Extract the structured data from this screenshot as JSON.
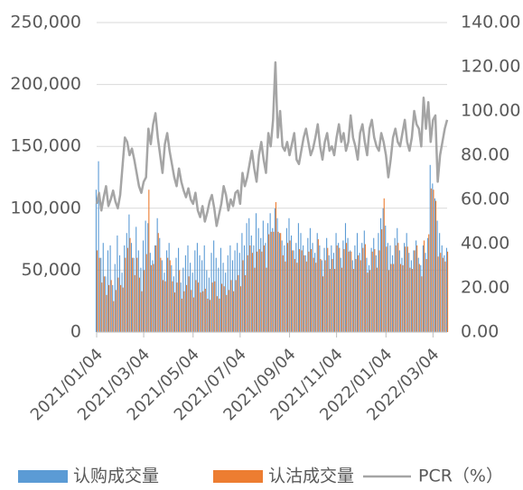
{
  "chart_data": {
    "type": "bar",
    "categories": [
      "2021/01/04",
      null,
      null,
      null,
      null,
      null,
      null,
      null,
      null,
      null,
      null,
      null,
      null,
      null,
      null,
      null,
      null,
      null,
      null,
      null,
      "2021/03/04",
      null,
      null,
      null,
      null,
      null,
      null,
      null,
      null,
      null,
      null,
      null,
      null,
      null,
      null,
      null,
      null,
      null,
      null,
      null,
      null,
      "2021/05/04",
      null,
      null,
      null,
      null,
      null,
      null,
      null,
      null,
      null,
      null,
      null,
      null,
      null,
      null,
      null,
      null,
      null,
      null,
      null,
      "2021/07/04",
      null,
      null,
      null,
      null,
      null,
      null,
      null,
      null,
      null,
      null,
      null,
      null,
      null,
      null,
      null,
      null,
      null,
      null,
      null,
      null,
      "2021/09/04",
      null,
      null,
      null,
      null,
      null,
      null,
      null,
      null,
      null,
      null,
      null,
      null,
      null,
      null,
      null,
      null,
      null,
      null,
      null,
      "2021/11/04",
      null,
      null,
      null,
      null,
      null,
      null,
      null,
      null,
      null,
      null,
      null,
      null,
      null,
      null,
      null,
      null,
      null,
      null,
      null,
      null,
      "2022/01/04",
      null,
      null,
      null,
      null,
      null,
      null,
      null,
      null,
      null,
      null,
      null,
      null,
      null,
      null,
      null,
      null,
      null,
      null,
      null,
      "2022/03/04",
      null,
      null,
      null,
      null,
      null,
      null
    ],
    "series": [
      {
        "name": "认购成交量",
        "color": "#5b9bd5",
        "values": [
          115000,
          138000,
          60000,
          72000,
          45000,
          66000,
          70000,
          38000,
          55000,
          78000,
          62000,
          48000,
          70000,
          80000,
          95000,
          72000,
          60000,
          85000,
          66000,
          52000,
          74000,
          90000,
          88000,
          64000,
          58000,
          70000,
          92000,
          76000,
          58000,
          48000,
          66000,
          72000,
          54000,
          45000,
          60000,
          68000,
          40000,
          52000,
          62000,
          70000,
          56000,
          48000,
          66000,
          72000,
          62000,
          58000,
          70000,
          50000,
          44000,
          64000,
          74000,
          60000,
          52000,
          68000,
          56000,
          48000,
          62000,
          70000,
          58000,
          66000,
          72000,
          64000,
          80000,
          70000,
          88000,
          92000,
          78000,
          70000,
          96000,
          84000,
          76000,
          90000,
          72000,
          88000,
          96000,
          84000,
          100000,
          92000,
          80000,
          74000,
          70000,
          84000,
          92000,
          78000,
          66000,
          72000,
          88000,
          80000,
          70000,
          62000,
          76000,
          84000,
          72000,
          64000,
          80000,
          70000,
          58000,
          68000,
          76000,
          62000,
          70000,
          64000,
          80000,
          72000,
          60000,
          74000,
          88000,
          76000,
          66000,
          58000,
          70000,
          80000,
          64000,
          72000,
          82000,
          60000,
          54000,
          68000,
          76000,
          62000,
          80000,
          92000,
          100000,
          86000,
          72000,
          70000,
          62000,
          76000,
          84000,
          66000,
          60000,
          72000,
          80000,
          64000,
          58000,
          66000,
          74000,
          60000,
          54000,
          70000,
          64000,
          76000,
          135000,
          120000,
          108000,
          90000,
          80000,
          70000,
          62000,
          68000
        ]
      },
      {
        "name": "认沽成交量",
        "color": "#ed7d31",
        "values": [
          66000,
          60000,
          40000,
          45000,
          30000,
          38000,
          42000,
          25000,
          34000,
          44000,
          38000,
          36000,
          60000,
          68000,
          76000,
          60000,
          46000,
          60000,
          44000,
          33000,
          50000,
          63000,
          115000,
          54000,
          55000,
          70000,
          80000,
          60000,
          42000,
          41000,
          60000,
          58000,
          41000,
          32000,
          40000,
          50000,
          27000,
          33000,
          38000,
          45000,
          34000,
          28000,
          42000,
          40000,
          32000,
          33000,
          35000,
          27000,
          26000,
          40000,
          41000,
          29000,
          27000,
          39000,
          37000,
          30000,
          34000,
          42000,
          33000,
          42000,
          46000,
          37000,
          58000,
          46000,
          62000,
          70000,
          64000,
          52000,
          65000,
          67000,
          65000,
          70000,
          52000,
          79000,
          81000,
          81000,
          105000,
          81000,
          80000,
          62000,
          57000,
          72000,
          74000,
          66000,
          59000,
          56000,
          67000,
          66000,
          62000,
          57000,
          65000,
          67000,
          60000,
          56000,
          75000,
          59000,
          45000,
          58000,
          68000,
          51000,
          59000,
          51000,
          70000,
          68000,
          52000,
          67000,
          72000,
          65000,
          65000,
          51000,
          59000,
          62000,
          58000,
          68000,
          71000,
          48000,
          50000,
          65000,
          67000,
          52000,
          66000,
          83000,
          108000,
          69000,
          50000,
          55000,
          55000,
          70000,
          72000,
          55000,
          54000,
          69000,
          69000,
          52000,
          51000,
          66000,
          70000,
          55000,
          45000,
          74000,
          59000,
          79000,
          116000,
          115000,
          106000,
          61000,
          64000,
          60000,
          57000,
          65000
        ]
      },
      {
        "name": "PCR（%）",
        "color": "#a5a5a5",
        "type": "line",
        "axis": "y2",
        "values": [
          58,
          63,
          55,
          61,
          66,
          57,
          60,
          64,
          59,
          56,
          62,
          75,
          88,
          86,
          80,
          83,
          78,
          72,
          66,
          63,
          68,
          70,
          92,
          85,
          94,
          99,
          88,
          80,
          72,
          85,
          90,
          82,
          76,
          70,
          66,
          74,
          68,
          64,
          61,
          65,
          60,
          58,
          63,
          55,
          52,
          57,
          50,
          54,
          59,
          62,
          56,
          48,
          53,
          58,
          66,
          62,
          55,
          60,
          57,
          63,
          64,
          58,
          72,
          66,
          70,
          76,
          82,
          74,
          68,
          80,
          86,
          78,
          72,
          90,
          84,
          96,
          122,
          88,
          100,
          84,
          82,
          86,
          80,
          85,
          90,
          78,
          76,
          82,
          88,
          92,
          86,
          80,
          83,
          88,
          94,
          84,
          78,
          86,
          90,
          82,
          84,
          80,
          88,
          94,
          86,
          90,
          82,
          86,
          98,
          88,
          84,
          78,
          90,
          94,
          86,
          80,
          92,
          96,
          88,
          84,
          82,
          90,
          86,
          80,
          70,
          78,
          88,
          92,
          86,
          84,
          90,
          96,
          86,
          82,
          88,
          100,
          94,
          92,
          84,
          106,
          92,
          104,
          86,
          96,
          98,
          68,
          80,
          86,
          92,
          96
        ]
      }
    ],
    "ylim": [
      0,
      250000
    ],
    "yticks": [
      0,
      {
        "value": 50000,
        "label": "50,000"
      },
      {
        "value": 100000,
        "label": "100,000"
      },
      {
        "value": 150000,
        "label": "150,000"
      },
      {
        "value": 200000,
        "label": "200,000"
      },
      {
        "value": 250000,
        "label": "250,000"
      }
    ],
    "y2lim": [
      0,
      140
    ],
    "y2ticks": [
      {
        "value": 0,
        "label": "0.00"
      },
      {
        "value": 20,
        "label": "20.00"
      },
      {
        "value": 40,
        "label": "40.00"
      },
      {
        "value": 60,
        "label": "60.00"
      },
      {
        "value": 80,
        "label": "80.00"
      },
      {
        "value": 100,
        "label": "100.00"
      },
      {
        "value": 120,
        "label": "120.00"
      },
      {
        "value": 140,
        "label": "140.00"
      }
    ],
    "grid": true
  }
}
